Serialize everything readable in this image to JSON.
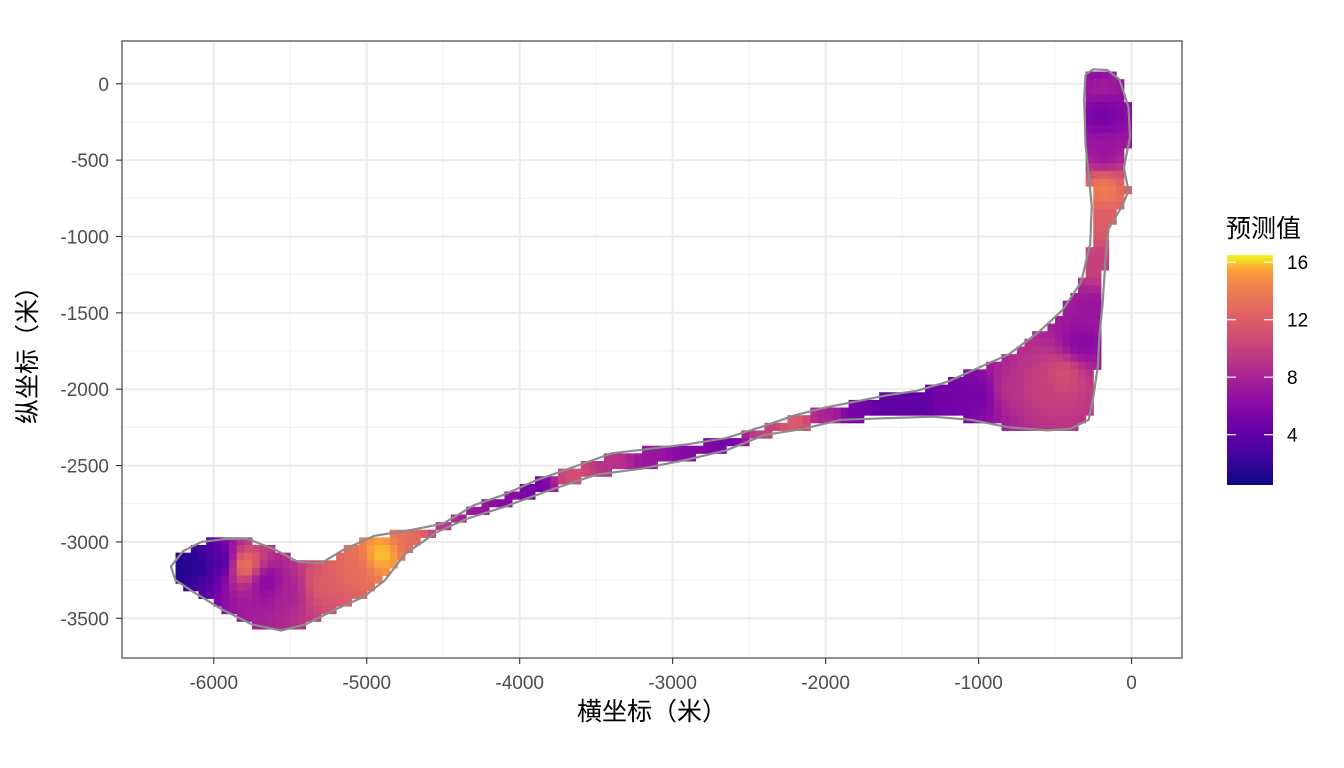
{
  "chart_data": {
    "type": "heatmap",
    "title": "",
    "xlabel": "横坐标（米）",
    "ylabel": "纵坐标（米）",
    "xlim": [
      -6600,
      330
    ],
    "ylim": [
      -3760,
      280
    ],
    "x_ticks": [
      -6000,
      -5000,
      -4000,
      -3000,
      -2000,
      -1000,
      0
    ],
    "y_ticks": [
      0,
      -500,
      -1000,
      -1500,
      -2000,
      -2500,
      -3000,
      -3500
    ],
    "x_tick_labels": [
      "-6000",
      "-5000",
      "-4000",
      "-3000",
      "-2000",
      "-1000",
      "0"
    ],
    "y_tick_labels": [
      "0",
      "-500",
      "-1000",
      "-1500",
      "-2000",
      "-2500",
      "-3000",
      "-3500"
    ],
    "grid": true,
    "legend": {
      "title": "预测值",
      "position": "right",
      "min": 0.5,
      "max": 16.5,
      "ticks": [
        4,
        8,
        12,
        16
      ],
      "tick_labels": [
        "4",
        "8",
        "12",
        "16"
      ],
      "palette": "plasma"
    },
    "boundary_outline": [
      [
        -6280,
        -3160
      ],
      [
        -6200,
        -3060
      ],
      [
        -6080,
        -3000
      ],
      [
        -5920,
        -2980
      ],
      [
        -5780,
        -2980
      ],
      [
        -5600,
        -3050
      ],
      [
        -5450,
        -3130
      ],
      [
        -5300,
        -3140
      ],
      [
        -5150,
        -3050
      ],
      [
        -4950,
        -2960
      ],
      [
        -4700,
        -2920
      ],
      [
        -4500,
        -2880
      ],
      [
        -4300,
        -2760
      ],
      [
        -4100,
        -2690
      ],
      [
        -3900,
        -2600
      ],
      [
        -3650,
        -2510
      ],
      [
        -3400,
        -2420
      ],
      [
        -3150,
        -2390
      ],
      [
        -2900,
        -2360
      ],
      [
        -2650,
        -2320
      ],
      [
        -2400,
        -2240
      ],
      [
        -2200,
        -2170
      ],
      [
        -2000,
        -2120
      ],
      [
        -1800,
        -2080
      ],
      [
        -1600,
        -2040
      ],
      [
        -1400,
        -2010
      ],
      [
        -1200,
        -1950
      ],
      [
        -1000,
        -1860
      ],
      [
        -800,
        -1770
      ],
      [
        -600,
        -1620
      ],
      [
        -450,
        -1480
      ],
      [
        -330,
        -1300
      ],
      [
        -270,
        -1050
      ],
      [
        -260,
        -800
      ],
      [
        -300,
        -400
      ],
      [
        -310,
        -100
      ],
      [
        -300,
        60
      ],
      [
        -250,
        95
      ],
      [
        -160,
        90
      ],
      [
        -80,
        30
      ],
      [
        -20,
        -150
      ],
      [
        -10,
        -350
      ],
      [
        -50,
        -550
      ],
      [
        -20,
        -700
      ],
      [
        -60,
        -800
      ],
      [
        -150,
        -950
      ],
      [
        -170,
        -1150
      ],
      [
        -190,
        -1450
      ],
      [
        -210,
        -1650
      ],
      [
        -220,
        -1850
      ],
      [
        -250,
        -2050
      ],
      [
        -280,
        -2200
      ],
      [
        -400,
        -2260
      ],
      [
        -550,
        -2270
      ],
      [
        -800,
        -2250
      ],
      [
        -1050,
        -2200
      ],
      [
        -1300,
        -2180
      ],
      [
        -1600,
        -2190
      ],
      [
        -1900,
        -2200
      ],
      [
        -2150,
        -2260
      ],
      [
        -2400,
        -2300
      ],
      [
        -2650,
        -2400
      ],
      [
        -2900,
        -2460
      ],
      [
        -3200,
        -2520
      ],
      [
        -3500,
        -2560
      ],
      [
        -3800,
        -2660
      ],
      [
        -4100,
        -2770
      ],
      [
        -4350,
        -2850
      ],
      [
        -4550,
        -2940
      ],
      [
        -4750,
        -3080
      ],
      [
        -4880,
        -3250
      ],
      [
        -5020,
        -3360
      ],
      [
        -5200,
        -3440
      ],
      [
        -5400,
        -3540
      ],
      [
        -5560,
        -3580
      ],
      [
        -5750,
        -3540
      ],
      [
        -5950,
        -3440
      ],
      [
        -6130,
        -3330
      ],
      [
        -6250,
        -3250
      ]
    ],
    "centerline": [
      [
        -6280,
        -3170
      ],
      [
        -6100,
        -3150
      ],
      [
        -5950,
        -3130
      ],
      [
        -5800,
        -3150
      ],
      [
        -5650,
        -3260
      ],
      [
        -5500,
        -3320
      ],
      [
        -5300,
        -3280
      ],
      [
        -5100,
        -3170
      ],
      [
        -4900,
        -3080
      ],
      [
        -4700,
        -2990
      ],
      [
        -4500,
        -2890
      ],
      [
        -4300,
        -2800
      ],
      [
        -4100,
        -2720
      ],
      [
        -3900,
        -2640
      ],
      [
        -3650,
        -2560
      ],
      [
        -3400,
        -2480
      ],
      [
        -3150,
        -2440
      ],
      [
        -2900,
        -2410
      ],
      [
        -2650,
        -2350
      ],
      [
        -2400,
        -2270
      ],
      [
        -2200,
        -2220
      ],
      [
        -2000,
        -2180
      ],
      [
        -1800,
        -2150
      ],
      [
        -1600,
        -2120
      ],
      [
        -1400,
        -2090
      ],
      [
        -1200,
        -2060
      ],
      [
        -1000,
        -2040
      ],
      [
        -800,
        -2000
      ],
      [
        -600,
        -1990
      ],
      [
        -450,
        -1900
      ],
      [
        -330,
        -1700
      ],
      [
        -260,
        -1450
      ],
      [
        -230,
        -1200
      ],
      [
        -200,
        -900
      ],
      [
        -180,
        -700
      ],
      [
        -180,
        -450
      ],
      [
        -190,
        -200
      ],
      [
        -200,
        0
      ],
      [
        -220,
        50
      ]
    ],
    "half_width": [
      150,
      170,
      180,
      250,
      280,
      250,
      230,
      220,
      200,
      180,
      160,
      140,
      130,
      120,
      110,
      100,
      90,
      90,
      90,
      90,
      90,
      90,
      90,
      90,
      90,
      90,
      110,
      140,
      220,
      260,
      240,
      180,
      140,
      130,
      120,
      120,
      120,
      130,
      80
    ],
    "prediction_values": [
      0.8,
      1.5,
      3,
      14,
      6,
      8,
      12,
      13,
      16,
      13,
      9,
      7,
      6,
      5,
      11,
      9,
      7,
      6,
      5,
      10,
      12,
      8,
      5,
      4,
      4,
      5,
      5,
      9,
      10,
      11,
      6,
      7,
      10,
      12,
      14,
      7,
      5,
      8,
      6
    ]
  }
}
